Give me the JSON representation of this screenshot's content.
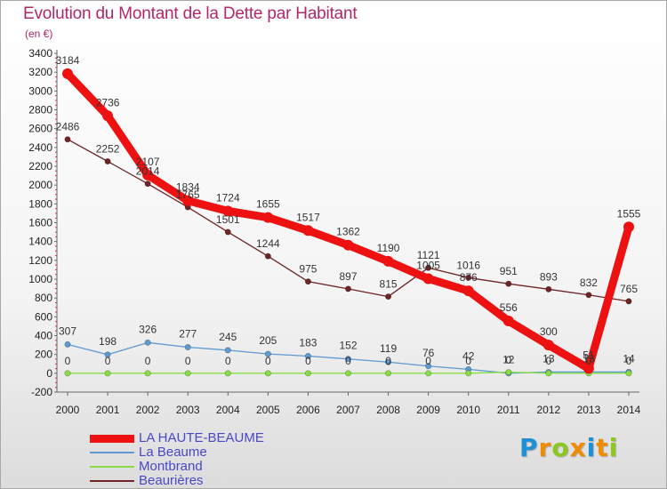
{
  "chart_data": {
    "type": "line",
    "title": "Evolution du Montant de la Dette par Habitant",
    "ylabel": "(en €)",
    "x": [
      "2000",
      "2001",
      "2002",
      "2003",
      "2004",
      "2005",
      "2006",
      "2007",
      "2008",
      "2009",
      "2010",
      "2011",
      "2012",
      "2013",
      "2014"
    ],
    "ylim": [
      -200,
      3400
    ],
    "yticks": [
      -200,
      0,
      200,
      400,
      600,
      800,
      1000,
      1200,
      1400,
      1600,
      1800,
      2000,
      2200,
      2400,
      2600,
      2800,
      3000,
      3200,
      3400
    ],
    "grid": false,
    "legend_position": "bottom-left",
    "series": [
      {
        "name": "LA HAUTE-BEAUME",
        "color": "#ee1111",
        "values": [
          3184,
          2736,
          2107,
          1834,
          1724,
          1655,
          1517,
          1362,
          1190,
          1005,
          876,
          556,
          300,
          51,
          1555
        ],
        "labels": [
          "3184",
          "2736",
          "2107",
          "1834",
          "1724",
          "1655",
          "1517",
          "1362",
          "1190",
          "1005",
          "876",
          "556",
          "300",
          "51",
          "1555"
        ]
      },
      {
        "name": "La Beaume",
        "color": "#5c9ad0",
        "values": [
          307,
          198,
          326,
          277,
          245,
          205,
          183,
          152,
          119,
          76,
          42,
          0,
          13,
          13,
          14
        ],
        "labels": [
          "307",
          "198",
          "326",
          "277",
          "245",
          "205",
          "183",
          "152",
          "119",
          "76",
          "42",
          "0",
          "13",
          "13",
          "14"
        ]
      },
      {
        "name": "Montbrand",
        "color": "#88dd44",
        "values": [
          0,
          0,
          0,
          0,
          0,
          0,
          0,
          0,
          0,
          0,
          0,
          12,
          0,
          0,
          0
        ],
        "labels": [
          "0",
          "0",
          "0",
          "0",
          "0",
          "0",
          "0",
          "0",
          "0",
          "0",
          "0",
          "12",
          "0",
          "0",
          "0"
        ]
      },
      {
        "name": "Beaurières",
        "color": "#6e2424",
        "values": [
          2486,
          2252,
          2014,
          1765,
          1501,
          1244,
          975,
          897,
          815,
          1121,
          1016,
          951,
          893,
          832,
          765
        ],
        "labels": [
          "2486",
          "2252",
          "2014",
          "1765",
          "1501",
          "1244",
          "975",
          "897",
          "815",
          "1121",
          "1016",
          "951",
          "893",
          "832",
          "765"
        ]
      }
    ]
  },
  "brand": {
    "letters": [
      "P",
      "r",
      "o",
      "x",
      "i",
      "t",
      "i"
    ],
    "colors": [
      "#1e90d8",
      "#f08c00",
      "#8cc81e",
      "#f08c00",
      "#1e90d8",
      "#f08c00",
      "#8cc81e"
    ]
  }
}
